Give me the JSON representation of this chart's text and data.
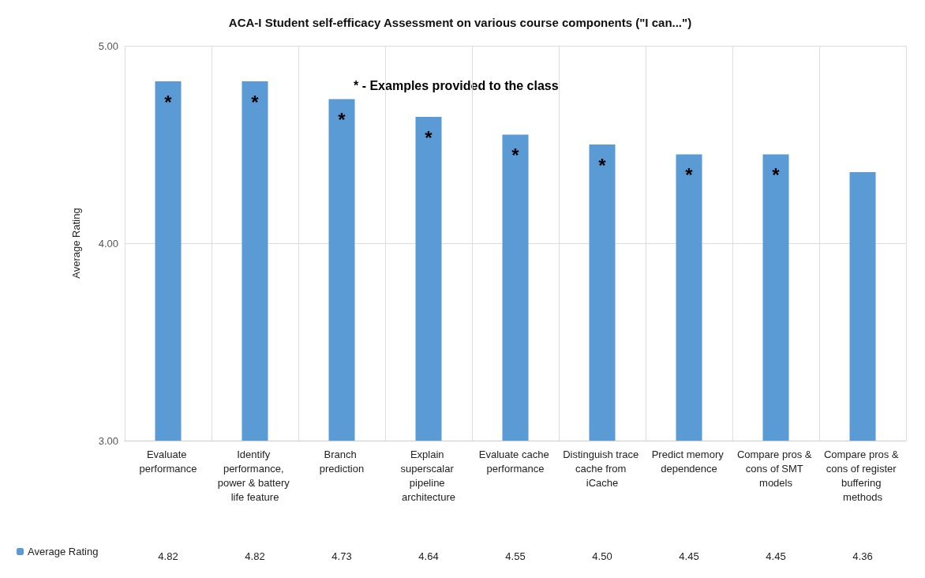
{
  "chart_data": {
    "type": "bar",
    "title": "ACA-I Student self-efficacy Assessment on various course components (\"I can...\")",
    "ylabel": "Average Rating",
    "categories": [
      "Evaluate performance",
      "Identify performance, power & battery life feature",
      "Branch prediction",
      "Explain superscalar pipeline architecture",
      "Evaluate cache performance",
      "Distinguish trace cache from iCache",
      "Predict memory dependence",
      "Compare pros & cons of SMT models",
      "Compare pros & cons of register buffering methods"
    ],
    "series": [
      {
        "name": "Average Rating",
        "color": "#5b9bd5",
        "values": [
          4.82,
          4.82,
          4.73,
          4.64,
          4.55,
          4.5,
          4.45,
          4.45,
          4.36
        ],
        "value_labels": [
          "4.82",
          "4.82",
          "4.73",
          "4.64",
          "4.55",
          "4.50",
          "4.45",
          "4.45",
          "4.36"
        ]
      }
    ],
    "ylim": [
      3,
      5
    ],
    "yticks": [
      {
        "value": 3,
        "label": "3.00"
      },
      {
        "value": 4,
        "label": "4.00"
      },
      {
        "value": 5,
        "label": "5.00"
      }
    ],
    "grid": "y",
    "legend": "bottom left",
    "annotations": [
      "* - Examples provided to the class",
      "*",
      "*",
      "*",
      "*",
      "*",
      "*",
      "*",
      "*"
    ]
  }
}
